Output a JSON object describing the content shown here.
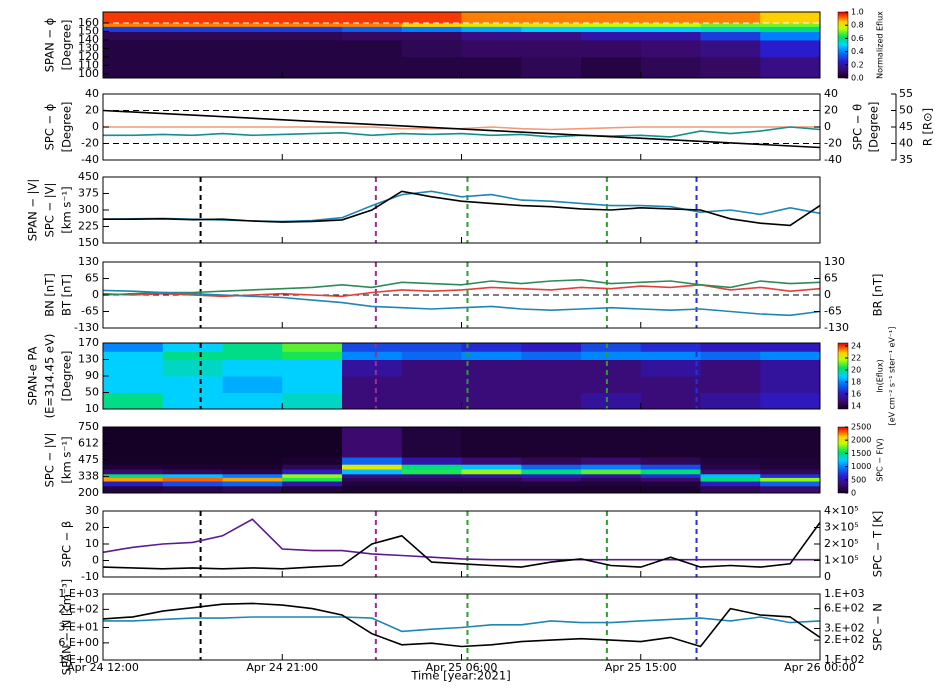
{
  "time": {
    "label": "Time [year:2021]",
    "xlim": [
      0,
      36
    ],
    "xticks": [
      {
        "value": 0,
        "label": "Apr 24 12:00"
      },
      {
        "value": 9,
        "label": "Apr 24 21:00"
      },
      {
        "value": 18,
        "label": "Apr 25 06:00"
      },
      {
        "value": 27,
        "label": "Apr 25 15:00"
      },
      {
        "value": 36,
        "label": "Apr 26 00:00"
      }
    ],
    "x": [
      0,
      1.5,
      3,
      4.5,
      6,
      7.5,
      9,
      10.5,
      12,
      13.5,
      15,
      16.5,
      18,
      19.5,
      21,
      22.5,
      24,
      25.5,
      27,
      28.5,
      30,
      31.5,
      33,
      34.5,
      36
    ],
    "events": [
      {
        "x": 4.9,
        "color": "#000000"
      },
      {
        "x": 13.7,
        "color": "#9b2d8f"
      },
      {
        "x": 18.3,
        "color": "#2e9e2e"
      },
      {
        "x": 25.3,
        "color": "#2e9e2e"
      },
      {
        "x": 29.8,
        "color": "#2233dd"
      }
    ]
  },
  "chart_data": [
    {
      "type": "heatmap",
      "ylabels": [
        {
          "text": "SPAN − ϕ",
          "color": "#000000"
        },
        {
          "text": "[Degree]",
          "color": "#000000"
        }
      ],
      "ylim": [
        95,
        173
      ],
      "yticks": [
        100,
        110,
        120,
        130,
        140,
        150,
        160
      ],
      "events": false,
      "hlines": [
        {
          "y": 160,
          "color": "#ffffff"
        }
      ],
      "x_edges": [
        0,
        3,
        6,
        9,
        12,
        15,
        18,
        21,
        24,
        27,
        30,
        33,
        36
      ],
      "y_edges": [
        95,
        120,
        140,
        150,
        156,
        160,
        173
      ],
      "z": [
        [
          0.05,
          0.05,
          0.05,
          0.05,
          0.05,
          0.05,
          0.05,
          0.08,
          0.05,
          0.08,
          0.1,
          0.15
        ],
        [
          0.05,
          0.05,
          0.05,
          0.05,
          0.05,
          0.08,
          0.1,
          0.1,
          0.1,
          0.12,
          0.15,
          0.25
        ],
        [
          0.08,
          0.08,
          0.08,
          0.08,
          0.1,
          0.1,
          0.15,
          0.15,
          0.2,
          0.2,
          0.3,
          0.4
        ],
        [
          0.3,
          0.3,
          0.3,
          0.3,
          0.35,
          0.4,
          0.45,
          0.5,
          0.5,
          0.5,
          0.55,
          0.6
        ],
        [
          0.9,
          0.9,
          0.9,
          0.9,
          0.9,
          0.85,
          0.8,
          0.8,
          0.75,
          0.75,
          0.7,
          0.7
        ],
        [
          0.95,
          0.95,
          0.95,
          0.95,
          0.95,
          0.95,
          0.9,
          0.9,
          0.9,
          0.9,
          0.9,
          0.85
        ]
      ],
      "colorbar": {
        "lim": [
          0,
          1
        ],
        "ticks": [
          {
            "value": 0,
            "label": "0.0"
          },
          {
            "value": 0.2,
            "label": "0.2"
          },
          {
            "value": 0.4,
            "label": "0.4"
          },
          {
            "value": 0.6,
            "label": "0.6"
          },
          {
            "value": 0.8,
            "label": "0.8"
          },
          {
            "value": 1,
            "label": "1.0"
          }
        ],
        "labels": [
          {
            "text": "Normalized Eflux"
          }
        ]
      }
    },
    {
      "type": "line",
      "ylabels": [
        {
          "text": "SPC − ϕ",
          "color": "#138f8f"
        },
        {
          "text": "[Degree]",
          "color": "#138f8f"
        }
      ],
      "ylim": [
        -40,
        40
      ],
      "yticks": [
        40,
        20,
        0,
        -20,
        -40
      ],
      "events": false,
      "y2labels": [
        {
          "text": "SPC − θ",
          "color": "#f29a7c"
        },
        {
          "text": "[Degree]",
          "color": "#f29a7c"
        }
      ],
      "y2lim": [
        -40,
        40
      ],
      "y2ticks": [
        40,
        20,
        0,
        -20,
        -40
      ],
      "y2tick_color": "#f29a7c",
      "y3labels": [
        {
          "text": "R [R⊙]",
          "color": "#000000"
        }
      ],
      "y3lim": [
        35,
        55
      ],
      "y3ticks": [
        35,
        40,
        45,
        50,
        55
      ],
      "hlines": [
        {
          "y": 20,
          "color": "#000000"
        },
        {
          "y": -20,
          "color": "#000000"
        }
      ],
      "series": [
        {
          "color": "#f29a7c",
          "axis": "y2",
          "values": [
            0,
            0,
            0,
            0,
            0,
            0,
            0,
            0,
            0,
            0,
            -2,
            -2,
            -2,
            0,
            -2,
            -3,
            -2,
            -1,
            0,
            0,
            0,
            0,
            0,
            0,
            0
          ]
        },
        {
          "color": "#138f8f",
          "values": [
            -10,
            -10,
            -9,
            -10,
            -8,
            -10,
            -9,
            -8,
            -7,
            -10,
            -8,
            -9,
            -8,
            -10,
            -9,
            -12,
            -10,
            -11,
            -10,
            -12,
            -5,
            -8,
            -5,
            0,
            -3
          ]
        },
        {
          "color": "#000000",
          "axis": "y3",
          "x": [
            0,
            36
          ],
          "values": [
            50,
            38.8
          ]
        }
      ]
    },
    {
      "type": "line",
      "ylabels": [
        {
          "text": "SPAN − |V|",
          "color": "#1f86b4"
        },
        {
          "text": "SPC − |V|",
          "color": "#000000"
        },
        {
          "text": "[km s⁻¹]",
          "color": "#000000"
        }
      ],
      "ylim": [
        150,
        450
      ],
      "yticks": [
        450,
        375,
        300,
        225,
        150
      ],
      "events": true,
      "series": [
        {
          "color": "#1f86b4",
          "values": [
            258,
            260,
            262,
            258,
            255,
            250,
            248,
            252,
            265,
            320,
            370,
            385,
            360,
            370,
            345,
            340,
            330,
            320,
            320,
            315,
            290,
            300,
            280,
            310,
            285
          ]
        },
        {
          "color": "#000000",
          "values": [
            258,
            258,
            260,
            256,
            258,
            250,
            245,
            248,
            255,
            300,
            385,
            360,
            340,
            330,
            320,
            315,
            305,
            300,
            310,
            305,
            300,
            260,
            240,
            230,
            320
          ]
        }
      ]
    },
    {
      "type": "line",
      "ylabels": [
        {
          "text": "BN [nT]",
          "color": "#e0403a"
        },
        {
          "text": "BT [nT]",
          "color": "#2e8b57"
        }
      ],
      "ylim": [
        -130,
        130
      ],
      "yticks": [
        130,
        65,
        0,
        -65,
        -130
      ],
      "events": true,
      "y2labels": [
        {
          "text": "BR [nT]",
          "color": "#1f86b4"
        }
      ],
      "y2lim": [
        -130,
        130
      ],
      "y2ticks": [
        130,
        65,
        0,
        -65,
        -130
      ],
      "y2tick_color": "#1f86b4",
      "hlines": [
        {
          "y": 0,
          "color": "#000000"
        }
      ],
      "series": [
        {
          "color": "#e0403a",
          "values": [
            5,
            0,
            5,
            0,
            -5,
            0,
            5,
            0,
            -5,
            10,
            20,
            15,
            20,
            30,
            25,
            20,
            30,
            25,
            35,
            30,
            40,
            20,
            30,
            15,
            25
          ]
        },
        {
          "color": "#2e8b57",
          "values": [
            0,
            5,
            10,
            10,
            15,
            20,
            25,
            30,
            40,
            30,
            50,
            45,
            40,
            55,
            45,
            55,
            60,
            45,
            50,
            55,
            40,
            30,
            55,
            45,
            50
          ]
        },
        {
          "color": "#1f86b4",
          "axis": "y2",
          "values": [
            18,
            15,
            10,
            5,
            0,
            -5,
            -10,
            -20,
            -30,
            -45,
            -50,
            -55,
            -50,
            -45,
            -55,
            -60,
            -55,
            -50,
            -55,
            -60,
            -55,
            -65,
            -75,
            -80,
            -65
          ]
        }
      ]
    },
    {
      "type": "heatmap",
      "ylabels": [
        {
          "text": "SPAN-e PA",
          "color": "#000000"
        },
        {
          "text": "(E=314.45 eV)",
          "color": "#000000"
        },
        {
          "text": "[Degree]",
          "color": "#000000"
        }
      ],
      "ylim": [
        10,
        170
      ],
      "yticks": [
        170,
        130,
        90,
        50,
        10
      ],
      "events": true,
      "x_edges": [
        0,
        3,
        6,
        9,
        12,
        15,
        18,
        21,
        24,
        27,
        30,
        33,
        36
      ],
      "y_edges": [
        10,
        50,
        90,
        130,
        150,
        170
      ],
      "z": [
        [
          20,
          19,
          19,
          19.5,
          15,
          15,
          15,
          15,
          15.5,
          15,
          15.5,
          16
        ],
        [
          19,
          19,
          18.5,
          19,
          15,
          15,
          15,
          15,
          15,
          15,
          15,
          15.5
        ],
        [
          19,
          19.5,
          19,
          19,
          15.5,
          15,
          15,
          15,
          15,
          15.5,
          15,
          15.5
        ],
        [
          19,
          20,
          20,
          20.5,
          18,
          17.5,
          18,
          17.5,
          18,
          18,
          17.5,
          18
        ],
        [
          18,
          19,
          20,
          21,
          17,
          17,
          16.5,
          16,
          17,
          16.5,
          16,
          16
        ]
      ],
      "colorbar": {
        "lim": [
          13.5,
          24.5
        ],
        "ticks": [
          14,
          16,
          18,
          20,
          22,
          24
        ],
        "labels": [
          {
            "text": "ln(Eflux)"
          },
          {
            "text": "[eV cm⁻² s⁻¹ ster⁻¹ eV⁻¹]"
          }
        ]
      }
    },
    {
      "type": "heatmap",
      "ylabels": [
        {
          "text": "SPC − |V|",
          "color": "#000000"
        },
        {
          "text": "[km s⁻¹]",
          "color": "#000000"
        }
      ],
      "ylim": [
        200,
        750
      ],
      "yticks": [
        750,
        612,
        475,
        338,
        200
      ],
      "events": false,
      "x_edges": [
        0,
        3,
        6,
        9,
        12,
        15,
        18,
        21,
        24,
        27,
        30,
        33,
        36
      ],
      "y_edges": [
        200,
        260,
        300,
        330,
        360,
        400,
        440,
        500,
        750
      ],
      "z": [
        [
          100,
          150,
          200,
          100,
          50,
          50,
          50,
          50,
          50,
          50,
          200,
          300
        ],
        [
          600,
          800,
          900,
          500,
          100,
          100,
          100,
          100,
          100,
          100,
          600,
          900
        ],
        [
          2200,
          2300,
          2200,
          1600,
          200,
          200,
          200,
          300,
          200,
          300,
          1500,
          1800
        ],
        [
          1500,
          1200,
          1000,
          1800,
          400,
          400,
          500,
          600,
          500,
          700,
          1200,
          700
        ],
        [
          300,
          200,
          150,
          600,
          1200,
          1600,
          1800,
          1500,
          1700,
          1500,
          300,
          200
        ],
        [
          80,
          60,
          50,
          200,
          2000,
          1500,
          1200,
          900,
          1000,
          800,
          150,
          100
        ],
        [
          20,
          20,
          20,
          50,
          900,
          500,
          300,
          200,
          300,
          200,
          100,
          80
        ],
        [
          10,
          10,
          10,
          10,
          300,
          100,
          50,
          50,
          50,
          50,
          50,
          50
        ]
      ],
      "colorbar": {
        "lim": [
          0,
          2500
        ],
        "ticks": [
          0,
          500,
          1000,
          1500,
          2000,
          2500
        ],
        "labels": [
          {
            "text": "SPC − F(V)"
          }
        ]
      }
    },
    {
      "type": "line",
      "ylabels": [
        {
          "text": "SPC − β",
          "color": "#5b1a8f"
        }
      ],
      "ylim": [
        -10,
        30
      ],
      "yticks": [
        30,
        20,
        10,
        0,
        -10
      ],
      "events": true,
      "y2labels": [
        {
          "text": "SPC − T [K]",
          "color": "#000000"
        }
      ],
      "y2lim": [
        0,
        400000
      ],
      "y2ticks": [
        {
          "value": 400000,
          "label": "4×10⁵"
        },
        {
          "value": 300000,
          "label": "3×10⁵"
        },
        {
          "value": 200000,
          "label": "2×10⁵"
        },
        {
          "value": 100000,
          "label": "1×10⁵"
        },
        0
      ],
      "series": [
        {
          "color": "#5b1a8f",
          "values": [
            5,
            8,
            10,
            11,
            15,
            25,
            7,
            6,
            6,
            4,
            3,
            2,
            1,
            0.5,
            0.5,
            0.5,
            0.5,
            0.5,
            0.5,
            0.5,
            0.5,
            0.5,
            0.5,
            0.5,
            0.5
          ]
        },
        {
          "color": "#000000",
          "axis": "y2",
          "values": [
            60000,
            55000,
            50000,
            55000,
            50000,
            55000,
            50000,
            60000,
            70000,
            200000,
            250000,
            90000,
            80000,
            70000,
            60000,
            90000,
            110000,
            70000,
            60000,
            120000,
            60000,
            70000,
            60000,
            80000,
            330000
          ]
        }
      ]
    },
    {
      "type": "line",
      "log": true,
      "ylabels": [
        {
          "text": "SPAN − N [cm⁻³]",
          "color": "#1f86b4"
        }
      ],
      "ylim": [
        1,
        1000
      ],
      "ytick_color": "#1f86b4",
      "yticks": [
        {
          "value": 1000,
          "label": "1.E+03"
        },
        {
          "value": 200,
          "label": "2.E+02"
        },
        {
          "value": 30,
          "label": "3.E+01"
        },
        {
          "value": 6,
          "label": "6.E+00"
        },
        {
          "value": 1,
          "label": "1.E+00"
        }
      ],
      "events": true,
      "y2labels": [
        {
          "text": "SPC − N",
          "color": "#000000"
        }
      ],
      "y2lim": [
        100,
        1000
      ],
      "y2ticks": [
        {
          "value": 1000,
          "label": "1.E+03"
        },
        {
          "value": 600,
          "label": "6.E+02"
        },
        {
          "value": 300,
          "label": "3.E+02"
        },
        {
          "value": 200,
          "label": "2.E+02"
        },
        {
          "value": 100,
          "label": "1.E+02"
        }
      ],
      "series": [
        {
          "color": "#1f86b4",
          "values": [
            60,
            60,
            70,
            80,
            80,
            90,
            90,
            90,
            90,
            80,
            20,
            25,
            30,
            40,
            40,
            60,
            50,
            50,
            60,
            70,
            80,
            60,
            90,
            50,
            60
          ]
        },
        {
          "color": "#000000",
          "axis": "y2",
          "values": [
            420,
            450,
            550,
            620,
            700,
            720,
            680,
            600,
            480,
            250,
            170,
            180,
            160,
            170,
            190,
            200,
            210,
            200,
            190,
            220,
            160,
            600,
            480,
            450,
            220
          ]
        }
      ]
    }
  ]
}
